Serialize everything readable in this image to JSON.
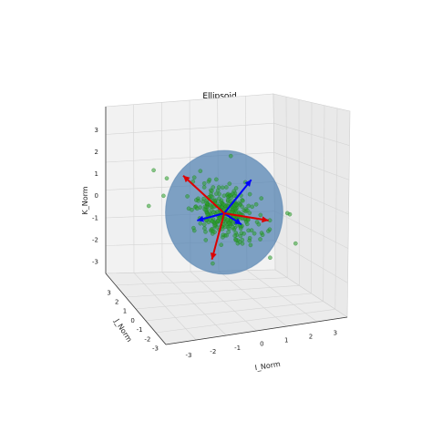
{
  "chart_data": {
    "type": "scatter",
    "projection": "3d",
    "title": "Ellipsoid",
    "xlabel": "I_Norm",
    "ylabel": "J_Norm",
    "zlabel": "K_Norm",
    "xlim": [
      -3.5,
      3.5
    ],
    "ylim": [
      -3.5,
      3.5
    ],
    "zlim": [
      -3.5,
      3.5
    ],
    "x_ticks": [
      "-3",
      "-2",
      "-1",
      "0",
      "1",
      "2",
      "3"
    ],
    "y_ticks": [
      "-3",
      "-2",
      "-1",
      "0",
      "1",
      "2",
      "3"
    ],
    "z_ticks": [
      "-3",
      "-2",
      "-1",
      "0",
      "1",
      "2",
      "3"
    ],
    "grid": true,
    "ellipsoid": {
      "center": [
        0,
        0,
        0
      ],
      "radii": [
        2.3,
        2.3,
        2.3
      ],
      "color": "#4f80b0"
    },
    "axes_vectors": [
      {
        "color": "#0000ff",
        "vector": [
          1.5,
          1.2,
          1.2
        ]
      },
      {
        "color": "#0000ff",
        "vector": [
          1.2,
          1.5,
          -1.0
        ]
      },
      {
        "color": "#0000ff",
        "vector": [
          -1.5,
          -1.2,
          0.0
        ]
      },
      {
        "color": "#dd0000",
        "vector": [
          -1.2,
          1.4,
          1.0
        ]
      },
      {
        "color": "#dd0000",
        "vector": [
          -1.0,
          -1.5,
          -1.6
        ]
      },
      {
        "color": "#dd0000",
        "vector": [
          1.6,
          -0.6,
          0.1
        ]
      }
    ],
    "points_color": "#2ca02c",
    "points_note": "about 300 points, mostly within radius 2.3 of the origin",
    "outliers": [
      [
        2.8,
        0.4,
        0.1
      ],
      [
        -2.9,
        0.5,
        -0.2
      ],
      [
        0.6,
        2.7,
        -1.7
      ],
      [
        -0.4,
        -2.6,
        0.6
      ],
      [
        2.5,
        -1.2,
        -0.6
      ],
      [
        -2.3,
        1.7,
        1.0
      ],
      [
        1.1,
        2.5,
        1.7
      ],
      [
        -1.3,
        -2.5,
        -1.4
      ],
      [
        3.0,
        1.3,
        -0.2
      ],
      [
        -2.8,
        -1.0,
        0.9
      ],
      [
        2.2,
        1.0,
        -2.2
      ],
      [
        -1.6,
        2.2,
        0.5
      ]
    ]
  }
}
